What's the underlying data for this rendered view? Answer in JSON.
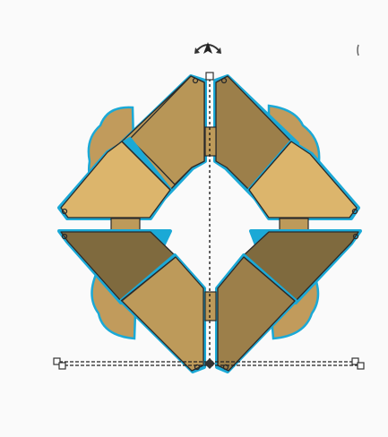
{
  "app": {
    "view": "3d-editor-canvas"
  },
  "selection": {
    "object": "folding-diamond-model",
    "colors": {
      "outline": "#1ba9d6",
      "stroke": "#2a2a2a",
      "light_top": "#dcb56c",
      "mid_top": "#bd9a5a",
      "dark_side": "#9c7f4a",
      "darkest_side": "#7f6a3e",
      "rotate_handle": "#333333",
      "dims_line": "#222222"
    },
    "handles": {
      "rotate": "rotate-arrow-icon",
      "corner": "resize-handle-icon",
      "edge": "edge-handle-icon"
    }
  }
}
